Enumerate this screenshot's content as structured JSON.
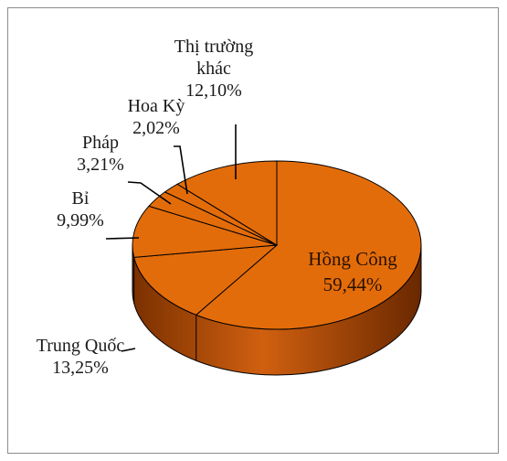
{
  "chart_data": {
    "type": "pie",
    "three_d": true,
    "title": "",
    "categories": [
      "Hồng Công",
      "Trung Quốc",
      "Bỉ",
      "Pháp",
      "Hoa Kỳ",
      "Thị trường khác"
    ],
    "values": [
      59.44,
      13.25,
      9.99,
      3.21,
      2.02,
      12.1
    ],
    "labels": [
      {
        "name_lines": [
          "Hồng Công"
        ],
        "value": "59,44%"
      },
      {
        "name_lines": [
          "Trung Quốc"
        ],
        "value": "13,25%"
      },
      {
        "name_lines": [
          "Bỉ"
        ],
        "value": "9,99%"
      },
      {
        "name_lines": [
          "Pháp"
        ],
        "value": "3,21%"
      },
      {
        "name_lines": [
          "Hoa Kỳ"
        ],
        "value": "2,02%"
      },
      {
        "name_lines": [
          "Thị trường",
          "khác"
        ],
        "value": "12,10%"
      }
    ],
    "colors": {
      "top": "#e36c0a",
      "side_dark": "#7a3000",
      "side_light": "#d06010",
      "edge": "#000000"
    },
    "legend": "none"
  }
}
